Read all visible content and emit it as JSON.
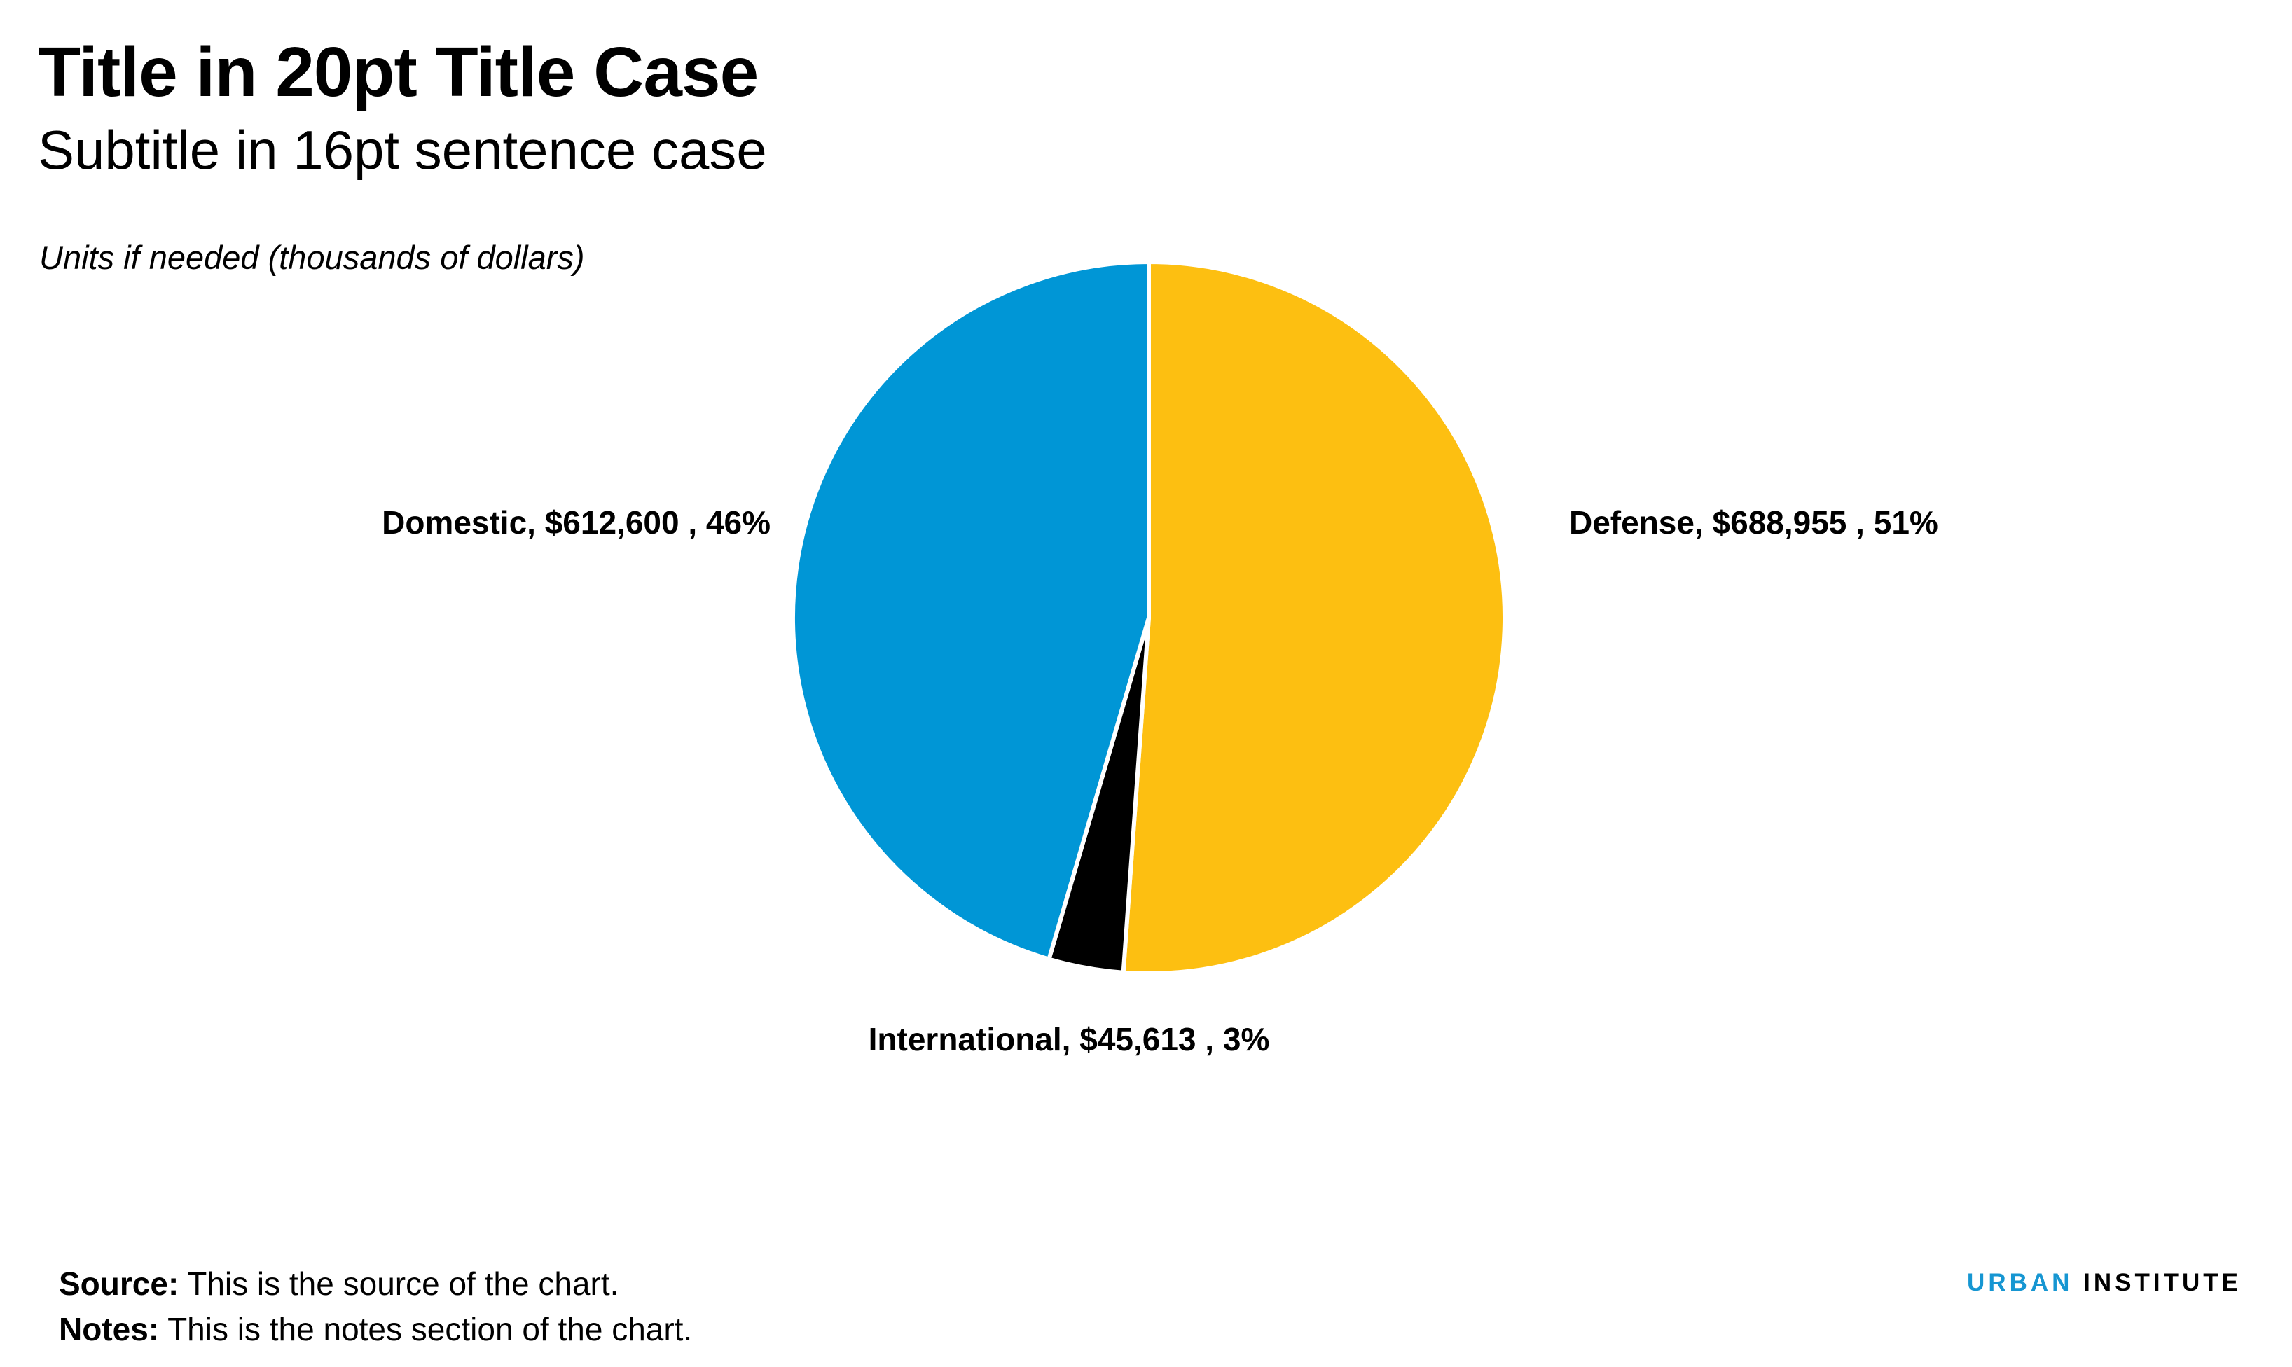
{
  "header": {
    "title": "Title in 20pt Title Case",
    "subtitle": "Subtitle in 16pt sentence case",
    "units": "Units if needed (thousands of dollars)"
  },
  "chart_data": {
    "type": "pie",
    "slices": [
      {
        "label": "Defense",
        "value": 688955,
        "display_value": "$688,955",
        "percent": "51%",
        "color": "#fdbf11"
      },
      {
        "label": "International",
        "value": 45613,
        "display_value": "$45,613",
        "percent": "3%",
        "color": "#000000"
      },
      {
        "label": "Domestic",
        "value": 612600,
        "display_value": "$612,600",
        "percent": "46%",
        "color": "#0096d6"
      }
    ],
    "start_angle": "12 o'clock",
    "direction": "clockwise",
    "slice_border_color": "#ffffff"
  },
  "footer": {
    "source_label": "Source:",
    "source_text": "This is the source of the chart.",
    "notes_label": "Notes:",
    "notes_text": "This is the notes section of the chart."
  },
  "brand": {
    "part1": "URBAN",
    "part2": "INSTITUTE"
  }
}
